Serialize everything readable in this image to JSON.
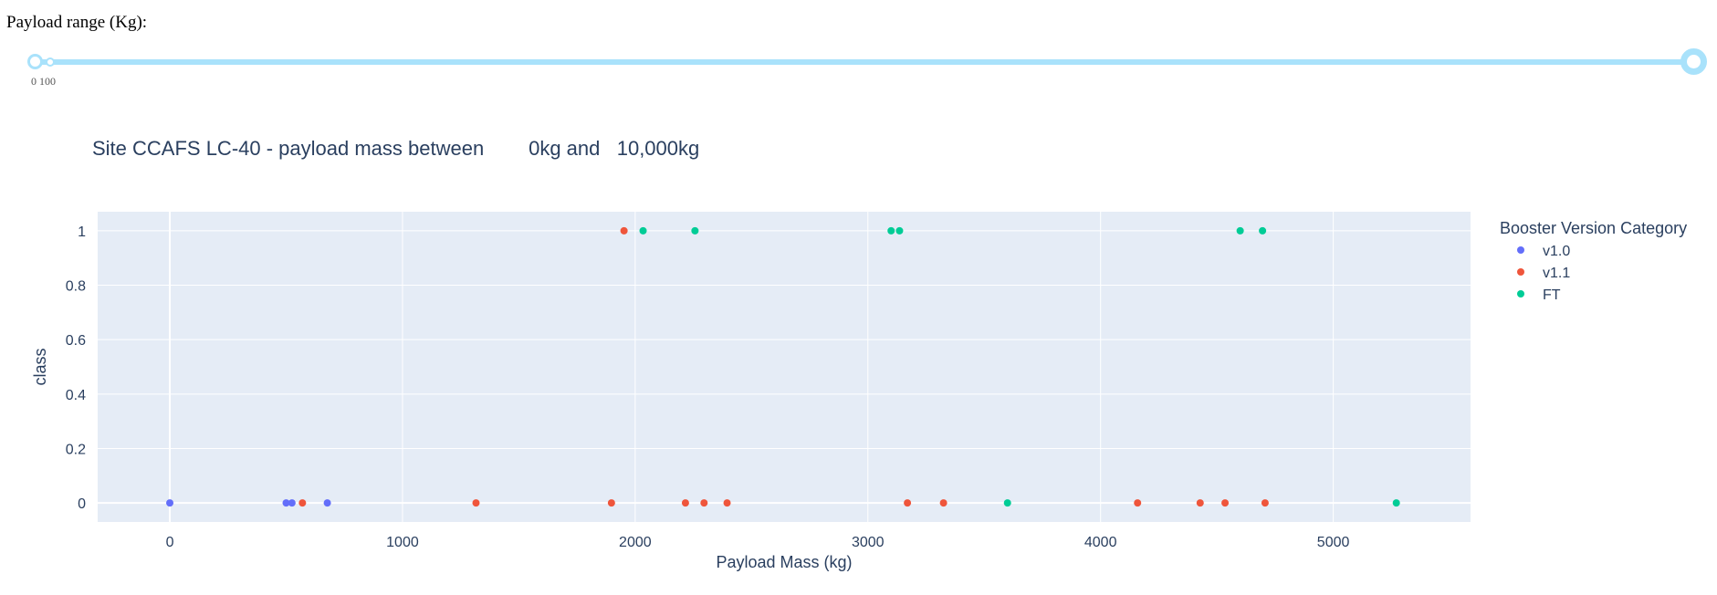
{
  "slider": {
    "label": "Payload range (Kg):",
    "marks_text": "0 100",
    "min": 0,
    "max": 10000,
    "value": [
      0,
      10000
    ]
  },
  "chart_data": {
    "type": "scatter",
    "title": "Site CCAFS LC-40 - payload mass between        0kg and   10,000kg",
    "xlabel": "Payload Mass (kg)",
    "ylabel": "class",
    "xlim": [
      -310,
      5590
    ],
    "ylim": [
      -0.07,
      1.07
    ],
    "xticks": [
      0,
      1000,
      2000,
      3000,
      4000,
      5000
    ],
    "yticks": [
      0,
      0.2,
      0.4,
      0.6,
      0.8,
      1
    ],
    "grid": true,
    "legend_title": "Booster Version Category",
    "legend_position": "right",
    "series": [
      {
        "name": "v1.0",
        "color": "#636efa",
        "points": [
          [
            0,
            0
          ],
          [
            500,
            0
          ],
          [
            525,
            0
          ],
          [
            677,
            0
          ]
        ]
      },
      {
        "name": "v1.1",
        "color": "#ef553b",
        "points": [
          [
            1952,
            1
          ],
          [
            570,
            0
          ],
          [
            1316,
            0
          ],
          [
            1898,
            0
          ],
          [
            2216,
            0
          ],
          [
            2296,
            0
          ],
          [
            2395,
            0
          ],
          [
            3170,
            0
          ],
          [
            3325,
            0
          ],
          [
            4159,
            0
          ],
          [
            4428,
            0
          ],
          [
            4535,
            0
          ],
          [
            4707,
            0
          ]
        ]
      },
      {
        "name": "FT",
        "color": "#00cc96",
        "points": [
          [
            2034,
            1
          ],
          [
            2257,
            1
          ],
          [
            3100,
            1
          ],
          [
            3136,
            1
          ],
          [
            4600,
            1
          ],
          [
            4696,
            1
          ],
          [
            3600,
            0
          ],
          [
            5271,
            0
          ]
        ]
      }
    ]
  }
}
